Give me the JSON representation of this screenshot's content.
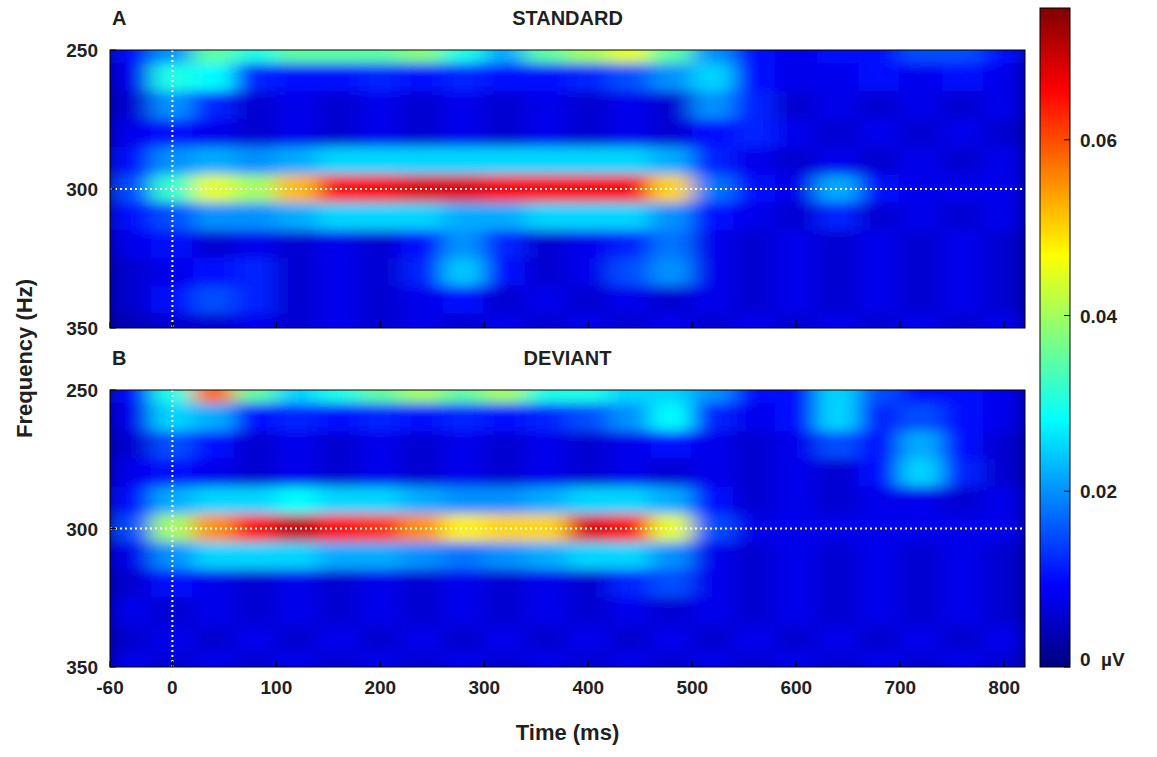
{
  "chart_data": [
    {
      "type": "heatmap",
      "panel": "A",
      "title": "STANDARD",
      "ylabel": "Frequency (Hz)",
      "tick_labels": "y",
      "x": [
        -40,
        0,
        40,
        80,
        120,
        160,
        200,
        240,
        280,
        320,
        360,
        400,
        440,
        480,
        520,
        560,
        600,
        640,
        680,
        720,
        760,
        800
      ],
      "y": [
        250,
        260,
        270,
        280,
        290,
        300,
        310,
        320,
        330,
        340,
        350
      ],
      "xlim": [
        -60,
        820
      ],
      "xticks": [
        -60,
        0,
        100,
        200,
        300,
        400,
        500,
        600,
        700,
        800
      ],
      "ylim": [
        250,
        350
      ],
      "yticks": [
        250,
        300,
        350
      ],
      "ref_x": 0,
      "ref_y": 300,
      "colorbar": {
        "range": [
          0,
          0.075
        ],
        "ticks": [
          {
            "value": 0,
            "label": "0  µV"
          },
          0.02,
          0.04,
          0.06
        ]
      },
      "values": [
        [
          0.01,
          0.02,
          0.035,
          0.03,
          0.035,
          0.035,
          0.035,
          0.038,
          0.03,
          0.022,
          0.035,
          0.04,
          0.045,
          0.035,
          0.02,
          0.01,
          0.008,
          0.01,
          0.01,
          0.015,
          0.015,
          0.01
        ],
        [
          0.008,
          0.03,
          0.028,
          0.012,
          0.01,
          0.01,
          0.012,
          0.01,
          0.012,
          0.01,
          0.01,
          0.012,
          0.015,
          0.02,
          0.025,
          0.01,
          0.008,
          0.008,
          0.01,
          0.008,
          0.01,
          0.008
        ],
        [
          0.006,
          0.02,
          0.012,
          0.006,
          0.008,
          0.006,
          0.008,
          0.006,
          0.008,
          0.006,
          0.008,
          0.006,
          0.008,
          0.006,
          0.02,
          0.012,
          0.006,
          0.008,
          0.006,
          0.008,
          0.006,
          0.008
        ],
        [
          0.008,
          0.01,
          0.008,
          0.006,
          0.008,
          0.006,
          0.008,
          0.006,
          0.008,
          0.006,
          0.008,
          0.006,
          0.008,
          0.006,
          0.01,
          0.012,
          0.008,
          0.006,
          0.008,
          0.006,
          0.008,
          0.006
        ],
        [
          0.01,
          0.02,
          0.022,
          0.02,
          0.022,
          0.025,
          0.025,
          0.025,
          0.025,
          0.025,
          0.025,
          0.025,
          0.025,
          0.022,
          0.012,
          0.008,
          0.006,
          0.008,
          0.006,
          0.008,
          0.006,
          0.008
        ],
        [
          0.015,
          0.032,
          0.045,
          0.04,
          0.052,
          0.065,
          0.066,
          0.068,
          0.068,
          0.066,
          0.066,
          0.066,
          0.066,
          0.05,
          0.018,
          0.01,
          0.008,
          0.022,
          0.01,
          0.008,
          0.008,
          0.008
        ],
        [
          0.01,
          0.015,
          0.02,
          0.02,
          0.022,
          0.025,
          0.025,
          0.025,
          0.022,
          0.022,
          0.025,
          0.025,
          0.025,
          0.02,
          0.01,
          0.008,
          0.006,
          0.012,
          0.006,
          0.008,
          0.006,
          0.008
        ],
        [
          0.008,
          0.01,
          0.006,
          0.008,
          0.006,
          0.008,
          0.006,
          0.01,
          0.02,
          0.012,
          0.006,
          0.008,
          0.012,
          0.018,
          0.008,
          0.006,
          0.008,
          0.006,
          0.008,
          0.006,
          0.008,
          0.006
        ],
        [
          0.006,
          0.008,
          0.01,
          0.012,
          0.006,
          0.008,
          0.006,
          0.012,
          0.024,
          0.01,
          0.006,
          0.008,
          0.015,
          0.02,
          0.008,
          0.006,
          0.008,
          0.006,
          0.008,
          0.006,
          0.008,
          0.006
        ],
        [
          0.006,
          0.01,
          0.015,
          0.012,
          0.006,
          0.008,
          0.006,
          0.008,
          0.01,
          0.006,
          0.008,
          0.006,
          0.008,
          0.006,
          0.008,
          0.006,
          0.008,
          0.006,
          0.008,
          0.006,
          0.008,
          0.006
        ],
        [
          0.004,
          0.006,
          0.006,
          0.008,
          0.006,
          0.008,
          0.006,
          0.008,
          0.006,
          0.008,
          0.006,
          0.008,
          0.006,
          0.008,
          0.006,
          0.008,
          0.006,
          0.008,
          0.006,
          0.008,
          0.006,
          0.008
        ]
      ]
    },
    {
      "type": "heatmap",
      "panel": "B",
      "title": "DEVIANT",
      "xlabel": "Time (ms)",
      "tick_labels": true,
      "x": [
        -40,
        0,
        40,
        80,
        120,
        160,
        200,
        240,
        280,
        320,
        360,
        400,
        440,
        480,
        520,
        560,
        600,
        640,
        680,
        720,
        760,
        800
      ],
      "y": [
        250,
        260,
        270,
        280,
        290,
        300,
        310,
        320,
        330,
        340,
        350
      ],
      "xlim": [
        -60,
        820
      ],
      "xticks": [
        -60,
        0,
        100,
        200,
        300,
        400,
        500,
        600,
        700,
        800
      ],
      "ylim": [
        250,
        350
      ],
      "yticks": [
        250,
        300,
        350
      ],
      "ref_x": 0,
      "ref_y": 300,
      "values": [
        [
          0.01,
          0.03,
          0.058,
          0.035,
          0.025,
          0.03,
          0.035,
          0.04,
          0.035,
          0.04,
          0.03,
          0.03,
          0.025,
          0.025,
          0.02,
          0.01,
          0.01,
          0.025,
          0.015,
          0.01,
          0.01,
          0.008
        ],
        [
          0.008,
          0.025,
          0.022,
          0.01,
          0.012,
          0.01,
          0.012,
          0.01,
          0.012,
          0.01,
          0.012,
          0.015,
          0.02,
          0.028,
          0.012,
          0.008,
          0.01,
          0.025,
          0.012,
          0.015,
          0.01,
          0.008
        ],
        [
          0.006,
          0.015,
          0.01,
          0.006,
          0.008,
          0.006,
          0.008,
          0.006,
          0.008,
          0.006,
          0.008,
          0.006,
          0.008,
          0.01,
          0.008,
          0.006,
          0.008,
          0.015,
          0.01,
          0.022,
          0.01,
          0.006
        ],
        [
          0.008,
          0.01,
          0.008,
          0.006,
          0.008,
          0.006,
          0.008,
          0.006,
          0.008,
          0.006,
          0.008,
          0.006,
          0.008,
          0.006,
          0.008,
          0.006,
          0.008,
          0.006,
          0.01,
          0.025,
          0.012,
          0.006
        ],
        [
          0.01,
          0.022,
          0.025,
          0.025,
          0.028,
          0.025,
          0.025,
          0.022,
          0.02,
          0.02,
          0.022,
          0.025,
          0.025,
          0.022,
          0.01,
          0.006,
          0.008,
          0.006,
          0.008,
          0.008,
          0.006,
          0.008
        ],
        [
          0.015,
          0.04,
          0.055,
          0.065,
          0.07,
          0.065,
          0.062,
          0.055,
          0.048,
          0.05,
          0.05,
          0.068,
          0.065,
          0.045,
          0.015,
          0.008,
          0.008,
          0.008,
          0.008,
          0.008,
          0.008,
          0.008
        ],
        [
          0.008,
          0.02,
          0.025,
          0.025,
          0.025,
          0.022,
          0.022,
          0.02,
          0.018,
          0.02,
          0.022,
          0.025,
          0.025,
          0.02,
          0.008,
          0.006,
          0.008,
          0.006,
          0.008,
          0.006,
          0.008,
          0.006
        ],
        [
          0.006,
          0.01,
          0.008,
          0.006,
          0.008,
          0.006,
          0.008,
          0.006,
          0.008,
          0.006,
          0.008,
          0.006,
          0.012,
          0.015,
          0.008,
          0.006,
          0.008,
          0.006,
          0.008,
          0.006,
          0.008,
          0.006
        ],
        [
          0.008,
          0.006,
          0.008,
          0.006,
          0.008,
          0.006,
          0.008,
          0.006,
          0.008,
          0.006,
          0.008,
          0.006,
          0.008,
          0.006,
          0.008,
          0.006,
          0.008,
          0.006,
          0.008,
          0.006,
          0.008,
          0.006
        ],
        [
          0.006,
          0.008,
          0.006,
          0.008,
          0.006,
          0.008,
          0.006,
          0.008,
          0.006,
          0.008,
          0.006,
          0.008,
          0.006,
          0.008,
          0.006,
          0.008,
          0.006,
          0.008,
          0.006,
          0.008,
          0.006,
          0.008
        ],
        [
          0.008,
          0.006,
          0.008,
          0.006,
          0.008,
          0.006,
          0.008,
          0.006,
          0.008,
          0.006,
          0.008,
          0.006,
          0.008,
          0.006,
          0.008,
          0.006,
          0.008,
          0.006,
          0.008,
          0.006,
          0.008,
          0.006
        ]
      ]
    }
  ]
}
